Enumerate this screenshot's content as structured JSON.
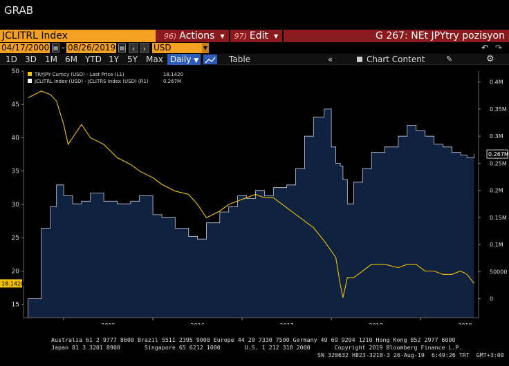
{
  "app": {
    "window_label": "GRAB"
  },
  "header": {
    "ticker": "JCLITRL Index",
    "actions_num": "96)",
    "actions_label": "Actions",
    "edit_num": "97)",
    "edit_label": "Edit",
    "chart_title": "G 267: NEt JPYtry pozisyon"
  },
  "dates": {
    "start": "04/17/2000",
    "end": "08/26/2019",
    "currency": "USD"
  },
  "toolbar": {
    "ranges": [
      "1D",
      "3D",
      "1M",
      "6M",
      "YTD",
      "1Y",
      "5Y",
      "Max"
    ],
    "frequency": "Daily",
    "table_label": "Table",
    "chart_content_label": "Chart Content"
  },
  "legend": [
    {
      "text": "TRYJPY Curncy (USD) - Last Price (L1)",
      "value": "18.1420",
      "color": "#f2c200"
    },
    {
      "text": "JCLITRL Index (USD) - JCLITRS Index (USD) (R1)",
      "value": "0.267M",
      "color": "#ffffff"
    }
  ],
  "chart_data": {
    "type": "area",
    "x_labels": [
      "2015",
      "2016",
      "2017",
      "2018",
      "2019"
    ],
    "left_axis": {
      "ticks": [
        15,
        20,
        25,
        30,
        35,
        40,
        45,
        50
      ],
      "ylim": [
        13,
        50
      ],
      "last_value_label": "18.1420"
    },
    "right_axis": {
      "ticks": [
        "0",
        "50000",
        "0.1M",
        "0.15M",
        "0.2M",
        "0.25M",
        "0.3M",
        "0.35M",
        "0.4M"
      ],
      "tick_values": [
        0,
        50000,
        100000,
        150000,
        200000,
        250000,
        300000,
        350000,
        400000
      ],
      "ylim": [
        -35000,
        420000
      ],
      "last_value_label": "0.267M"
    },
    "x": [
      2014.6,
      2014.75,
      2014.85,
      2014.92,
      2015.0,
      2015.05,
      2015.1,
      2015.2,
      2015.3,
      2015.45,
      2015.6,
      2015.75,
      2015.85,
      2016.0,
      2016.1,
      2016.25,
      2016.4,
      2016.5,
      2016.6,
      2016.75,
      2016.85,
      2016.95,
      2017.05,
      2017.15,
      2017.25,
      2017.35,
      2017.5,
      2017.6,
      2017.7,
      2017.8,
      2017.92,
      2018.0,
      2018.05,
      2018.1,
      2018.13,
      2018.18,
      2018.25,
      2018.35,
      2018.45,
      2018.6,
      2018.75,
      2018.85,
      2018.95,
      2019.05,
      2019.15,
      2019.25,
      2019.35,
      2019.45,
      2019.52,
      2019.6
    ],
    "series": [
      {
        "name": "TRYJPY Curncy (USD) - Last Price (L1)",
        "color": "#f2c200",
        "axis": "left",
        "values": [
          46,
          47,
          46.5,
          45.5,
          42,
          39,
          40,
          42,
          40,
          39,
          37,
          36,
          35,
          34,
          33,
          32,
          31.5,
          30,
          28,
          29,
          30,
          30.5,
          31,
          31.5,
          31,
          31,
          29.5,
          28.5,
          27.5,
          26.5,
          24.5,
          23,
          22,
          18,
          16,
          19,
          19,
          20,
          21,
          21,
          20.5,
          21,
          21,
          20,
          20,
          19.5,
          19.5,
          20,
          19.5,
          18.14
        ]
      },
      {
        "name": "JCLITRL Index (USD) - JCLITRS Index (USD) (R1)",
        "color": "#ffffff",
        "fill": "#0f2240",
        "axis": "right",
        "values": [
          0,
          130000,
          170000,
          210000,
          190000,
          190000,
          175000,
          180000,
          195000,
          180000,
          175000,
          180000,
          190000,
          155000,
          150000,
          130000,
          115000,
          110000,
          140000,
          160000,
          170000,
          190000,
          185000,
          200000,
          190000,
          205000,
          210000,
          240000,
          300000,
          335000,
          350000,
          280000,
          250000,
          245000,
          220000,
          175000,
          215000,
          240000,
          270000,
          280000,
          300000,
          320000,
          310000,
          300000,
          285000,
          280000,
          270000,
          265000,
          260000,
          267000
        ]
      }
    ]
  },
  "footer": {
    "line1": "Australia 61 2 9777 8600 Brazil 5511 2395 9000 Europe 44 20 7330 7500 Germany 49 69 9204 1210 Hong Kong 852 2977 6000",
    "line2": "Japan 81 3 3201 8900       Singapore 65 6212 1000       U.S. 1 212 318 2000       Copyright 2019 Bloomberg Finance L.P.",
    "line3": "SN 320632 H823-3218-3 26-Aug-19  6:49:26 TRT  GMT+3:00"
  },
  "colors": {
    "ticker_bg": "#f4a020",
    "menu_bg": "#8b1a1f",
    "active_btn": "#2d5db8",
    "area_fill": "#0f2240",
    "price_line": "#f2c200"
  }
}
